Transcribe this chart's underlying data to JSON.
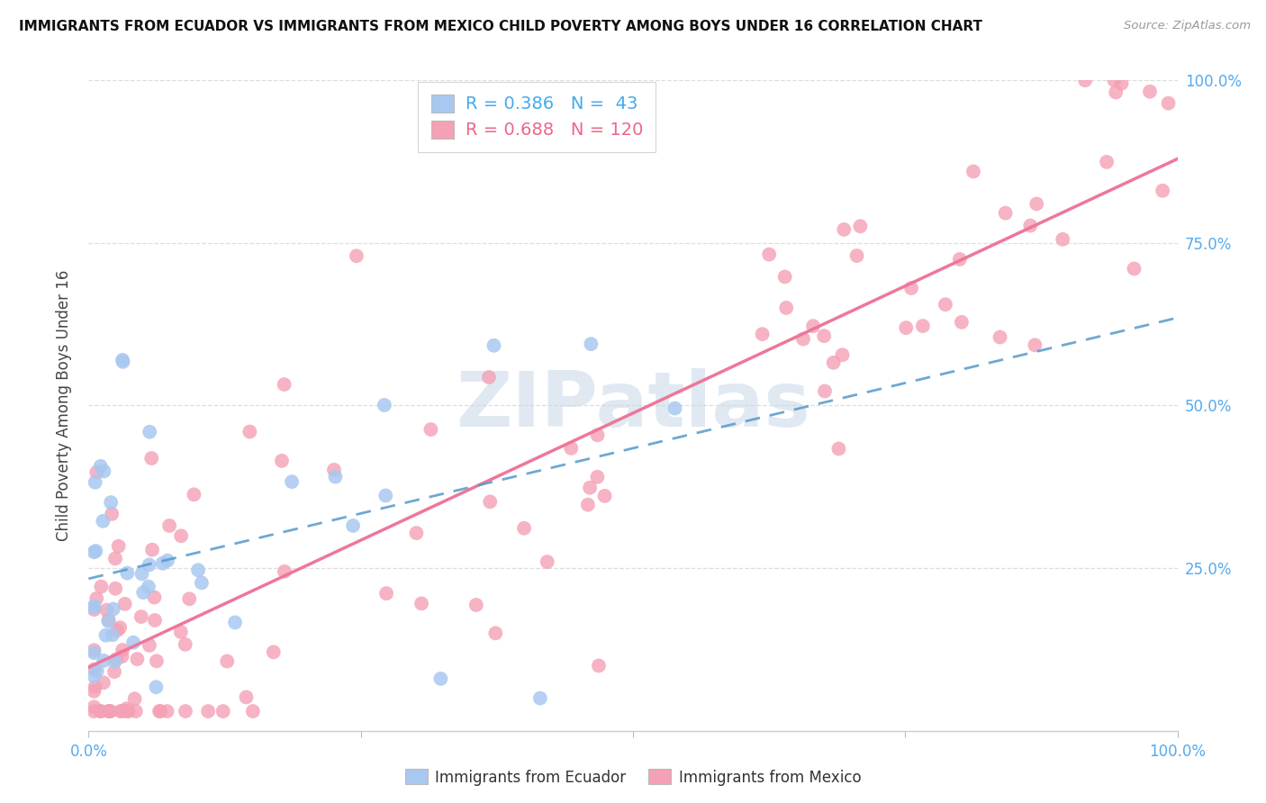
{
  "title": "IMMIGRANTS FROM ECUADOR VS IMMIGRANTS FROM MEXICO CHILD POVERTY AMONG BOYS UNDER 16 CORRELATION CHART",
  "source": "Source: ZipAtlas.com",
  "ylabel": "Child Poverty Among Boys Under 16",
  "ecuador_R": 0.386,
  "ecuador_N": 43,
  "mexico_R": 0.688,
  "mexico_N": 120,
  "ecuador_color": "#a8c8f0",
  "mexico_color": "#f4a0b5",
  "ecuador_line_color": "#5599cc",
  "mexico_line_color": "#ee7799",
  "background_color": "#ffffff",
  "grid_color": "#dddddd",
  "watermark_color": "#c8d8e8",
  "legend_text_color_blue": "#44aaee",
  "legend_text_color_pink": "#ee6688",
  "right_tick_color": "#55aaee",
  "bottom_tick_color": "#55aaee"
}
